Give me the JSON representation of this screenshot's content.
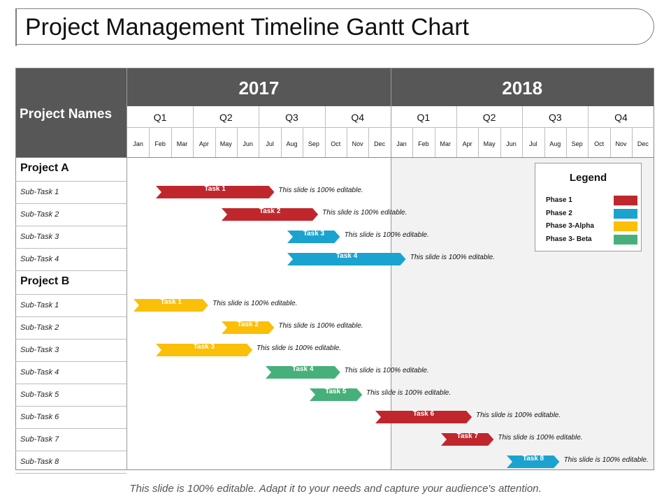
{
  "title": "Project Management Timeline Gantt Chart",
  "footer": "This slide is 100% editable. Adapt it to your needs and capture your audience's attention.",
  "colors": {
    "header_bg": "#575757",
    "phase1": "#c0272d",
    "phase2": "#1aa3cf",
    "phase3_alpha": "#fbbf07",
    "phase3_beta": "#47b07a"
  },
  "chart_data": {
    "type": "gantt",
    "row_header": "Project Names",
    "years": [
      "2017",
      "2018"
    ],
    "quarters": [
      "Q1",
      "Q2",
      "Q3",
      "Q4",
      "Q1",
      "Q2",
      "Q3",
      "Q4"
    ],
    "months": [
      "Jan",
      "Feb",
      "Mar",
      "Apr",
      "May",
      "Jun",
      "Jul",
      "Aug",
      "Sep",
      "Oct",
      "Nov",
      "Dec",
      "Jan",
      "Feb",
      "Mar",
      "Apr",
      "May",
      "Jun",
      "Jul",
      "Aug",
      "Sep",
      "Oct",
      "Nov",
      "Dec"
    ],
    "legend": {
      "title": "Legend",
      "items": [
        {
          "label": "Phase 1",
          "color": "#c0272d"
        },
        {
          "label": "Phase 2",
          "color": "#1aa3cf"
        },
        {
          "label": "Phase 3-Alpha",
          "color": "#fbbf07"
        },
        {
          "label": "Phase 3- Beta",
          "color": "#47b07a"
        }
      ]
    },
    "projects": [
      {
        "name": "Project A",
        "tasks": [
          {
            "row": "Sub-Task 1",
            "label": "Task 1",
            "start": "2017-02",
            "end": "2017-07",
            "phase": "Phase 1",
            "note": "This slide is 100% editable."
          },
          {
            "row": "Sub-Task 2",
            "label": "Task 2",
            "start": "2017-05",
            "end": "2017-09",
            "phase": "Phase 1",
            "note": "This slide is 100% editable."
          },
          {
            "row": "Sub-Task 3",
            "label": "Task 3",
            "start": "2017-08",
            "end": "2017-10",
            "phase": "Phase 2",
            "note": "This slide is 100% editable."
          },
          {
            "row": "Sub-Task 4",
            "label": "Task 4",
            "start": "2017-08",
            "end": "2018-01",
            "phase": "Phase 2",
            "note": "This slide is 100% editable."
          }
        ]
      },
      {
        "name": "Project B",
        "tasks": [
          {
            "row": "Sub-Task 1",
            "label": "Task 1",
            "start": "2017-01",
            "end": "2017-04",
            "phase": "Phase 3-Alpha",
            "note": "This slide is 100% editable."
          },
          {
            "row": "Sub-Task 2",
            "label": "Task 2",
            "start": "2017-05",
            "end": "2017-07",
            "phase": "Phase 3-Alpha",
            "note": "This slide is 100% editable."
          },
          {
            "row": "Sub-Task 3",
            "label": "Task 3",
            "start": "2017-02",
            "end": "2017-06",
            "phase": "Phase 3-Alpha",
            "note": "This slide is 100% editable."
          },
          {
            "row": "Sub-Task 4",
            "label": "Task 4",
            "start": "2017-07",
            "end": "2017-10",
            "phase": "Phase 3- Beta",
            "note": "This slide is 100% editable."
          },
          {
            "row": "Sub-Task 5",
            "label": "Task 5",
            "start": "2017-09",
            "end": "2017-11",
            "phase": "Phase 3- Beta",
            "note": "This slide is 100% editable."
          },
          {
            "row": "Sub-Task 6",
            "label": "Task 6",
            "start": "2017-12",
            "end": "2018-04",
            "phase": "Phase 1",
            "note": "This slide is 100% editable."
          },
          {
            "row": "Sub-Task 7",
            "label": "Task 7",
            "start": "2018-03",
            "end": "2018-05",
            "phase": "Phase 1",
            "note": "This slide is 100% editable."
          },
          {
            "row": "Sub-Task 8",
            "label": "Task 8",
            "start": "2018-06",
            "end": "2018-08",
            "phase": "Phase 2",
            "note": "This slide is 100% editable."
          }
        ]
      }
    ]
  }
}
